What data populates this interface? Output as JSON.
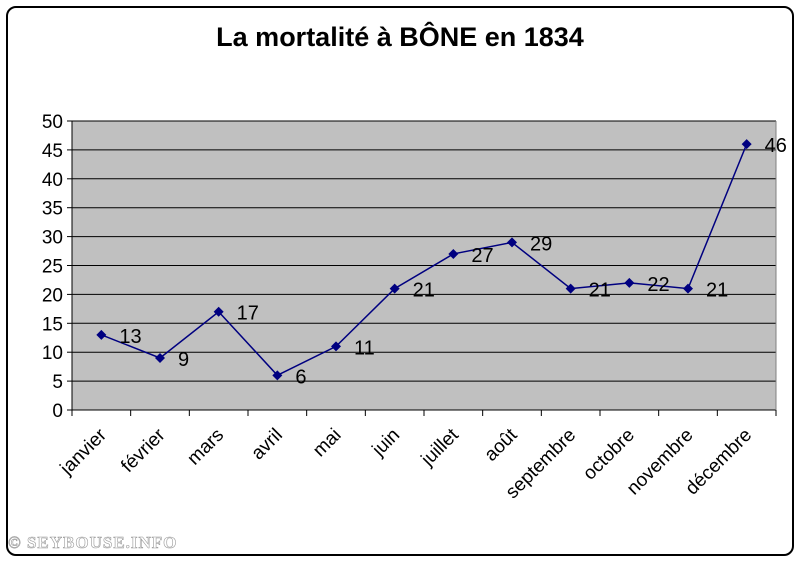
{
  "watermark": "© SEYBOUSE.INFO",
  "chart_data": {
    "type": "line",
    "title": "La mortalité à BÔNE en 1834",
    "xlabel": "",
    "ylabel": "",
    "categories": [
      "janvier",
      "février",
      "mars",
      "avril",
      "mai",
      "juin",
      "juillet",
      "août",
      "septembre",
      "octobre",
      "novembre",
      "décembre"
    ],
    "values": [
      13,
      9,
      17,
      6,
      11,
      21,
      27,
      29,
      21,
      22,
      21,
      46
    ],
    "data_labels": [
      "13",
      "9",
      "17",
      "6",
      "11",
      "21",
      "27",
      "29",
      "21",
      "22",
      "21",
      "46"
    ],
    "ylim": [
      0,
      50
    ],
    "yticks": [
      "0",
      "5",
      "10",
      "15",
      "20",
      "25",
      "30",
      "35",
      "40",
      "45",
      "50"
    ],
    "grid": true,
    "legend": "none",
    "colors": {
      "line": "#000080",
      "plot_background": "#c0c0c0",
      "gridline": "#000000"
    }
  }
}
